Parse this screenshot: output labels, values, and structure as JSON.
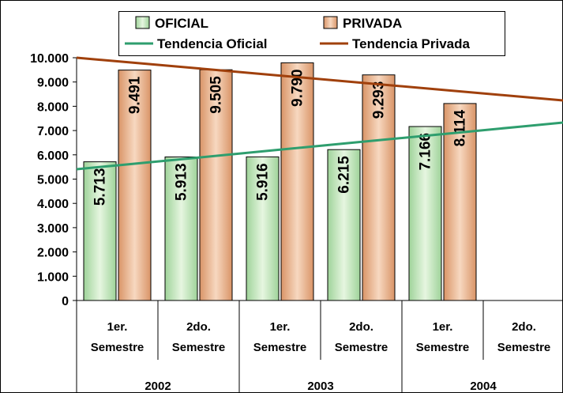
{
  "chart_data": {
    "type": "bar",
    "categories": [
      "1er. Semestre",
      "2do. Semestre",
      "1er. Semestre",
      "2do. Semestre",
      "1er. Semestre",
      "2do. Semestre"
    ],
    "groups": [
      "2002",
      "2003",
      "2004"
    ],
    "series": [
      {
        "name": "OFICIAL",
        "color": "#c6e6bc",
        "values": [
          5713,
          5913,
          5916,
          6215,
          7166,
          null
        ],
        "value_labels": [
          "5.713",
          "5.913",
          "5.916",
          "6.215",
          "7.166",
          null
        ]
      },
      {
        "name": "PRIVADA",
        "color": "#e9b68e",
        "values": [
          9491,
          9505,
          9790,
          9293,
          8114,
          null
        ],
        "value_labels": [
          "9.491",
          "9.505",
          "9.790",
          "9.293",
          "8.114",
          null
        ]
      }
    ],
    "trends": [
      {
        "name": "Tendencia Oficial",
        "color": "#2e9e6e",
        "values": [
          5568,
          5890,
          6211,
          6533,
          6854,
          7176
        ]
      },
      {
        "name": "Tendencia Privada",
        "color": "#a0400c",
        "values": [
          9853,
          9559,
          9265,
          8971,
          8677,
          8383
        ]
      }
    ],
    "ylim": [
      0,
      10000
    ],
    "yticks": [
      0,
      {
        "value": 1000,
        "label": "1.000"
      },
      {
        "value": 2000,
        "label": "2.000"
      },
      {
        "value": 3000,
        "label": "3.000"
      },
      {
        "value": 4000,
        "label": "4.000"
      },
      {
        "value": 5000,
        "label": "5.000"
      },
      {
        "value": 6000,
        "label": "6.000"
      },
      {
        "value": 7000,
        "label": "7.000"
      },
      {
        "value": 8000,
        "label": "8.000"
      },
      {
        "value": 9000,
        "label": "9.000"
      },
      {
        "value": 10000,
        "label": "10.000"
      }
    ],
    "legend": "top"
  }
}
